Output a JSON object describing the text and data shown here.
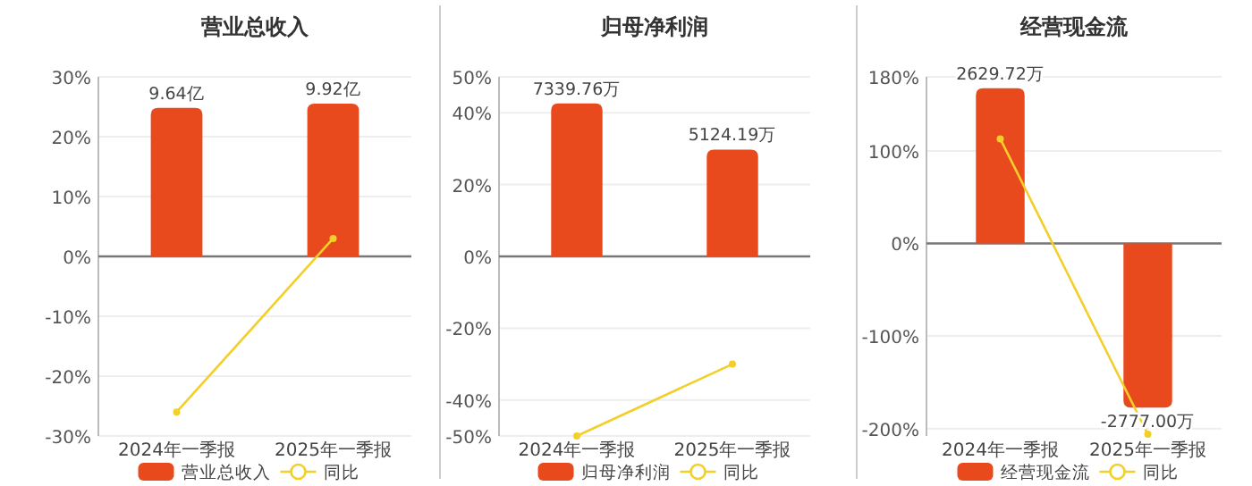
{
  "chart_data": [
    {
      "type": "bar",
      "title": "营业总收入",
      "categories": [
        "2024年一季报",
        "2025年一季报"
      ],
      "series": [
        {
          "name": "营业总收入",
          "type": "bar",
          "axis": "y2",
          "color": "#e84a1e",
          "values": [
            9.64,
            9.92
          ],
          "value_labels": [
            "9.64亿",
            "9.92亿"
          ]
        },
        {
          "name": "同比",
          "type": "line",
          "axis": "y",
          "color": "#f2cf2a",
          "marker": "circle",
          "values": [
            -26,
            3
          ]
        }
      ],
      "ylim": [
        -30,
        30
      ],
      "yticks": [
        {
          "value": -30,
          "label": "-30%"
        },
        {
          "value": -20,
          "label": "-20%"
        },
        {
          "value": -10,
          "label": "-10%"
        },
        {
          "value": 0,
          "label": "0%"
        },
        {
          "value": 10,
          "label": "10%"
        },
        {
          "value": 20,
          "label": "20%"
        },
        {
          "value": 30,
          "label": "30%"
        }
      ],
      "y2lim": [
        -11.66,
        11.66
      ],
      "grid": "y",
      "legend": "bottom"
    },
    {
      "type": "bar",
      "title": "归母净利润",
      "categories": [
        "2024年一季报",
        "2025年一季报"
      ],
      "series": [
        {
          "name": "归母净利润",
          "type": "bar",
          "axis": "y2",
          "color": "#e84a1e",
          "values": [
            7339.76,
            5124.19
          ],
          "value_labels": [
            "7339.76万",
            "5124.19万"
          ]
        },
        {
          "name": "同比",
          "type": "line",
          "axis": "y",
          "color": "#f2cf2a",
          "marker": "circle",
          "values": [
            -50,
            -30
          ]
        }
      ],
      "ylim": [
        -50,
        50
      ],
      "yticks": [
        {
          "value": -50,
          "label": "-50%"
        },
        {
          "value": -40,
          "label": "-40%"
        },
        {
          "value": -20,
          "label": "-20%"
        },
        {
          "value": 0,
          "label": "0%"
        },
        {
          "value": 20,
          "label": "20%"
        },
        {
          "value": 40,
          "label": "40%"
        },
        {
          "value": 50,
          "label": "50%"
        }
      ],
      "y2lim": [
        -8610,
        8610
      ],
      "grid": "y",
      "legend": "bottom"
    },
    {
      "type": "bar",
      "title": "经营现金流",
      "categories": [
        "2024年一季报",
        "2025年一季报"
      ],
      "series": [
        {
          "name": "经营现金流",
          "type": "bar",
          "axis": "y2",
          "color": "#e84a1e",
          "values": [
            2629.72,
            -2777.0
          ],
          "value_labels": [
            "2629.72万",
            "-2777.00万"
          ]
        },
        {
          "name": "同比",
          "type": "line",
          "axis": "y",
          "color": "#f2cf2a",
          "marker": "circle",
          "values": [
            113,
            -206
          ]
        }
      ],
      "ylim": [
        -208,
        180
      ],
      "yticks": [
        {
          "value": -200,
          "label": "-200%"
        },
        {
          "value": -100,
          "label": "-100%"
        },
        {
          "value": 0,
          "label": "0%"
        },
        {
          "value": 100,
          "label": "100%"
        },
        {
          "value": 180,
          "label": "180%"
        }
      ],
      "y2lim": [
        -3259,
        2821
      ],
      "grid": "y",
      "legend": "bottom"
    }
  ]
}
